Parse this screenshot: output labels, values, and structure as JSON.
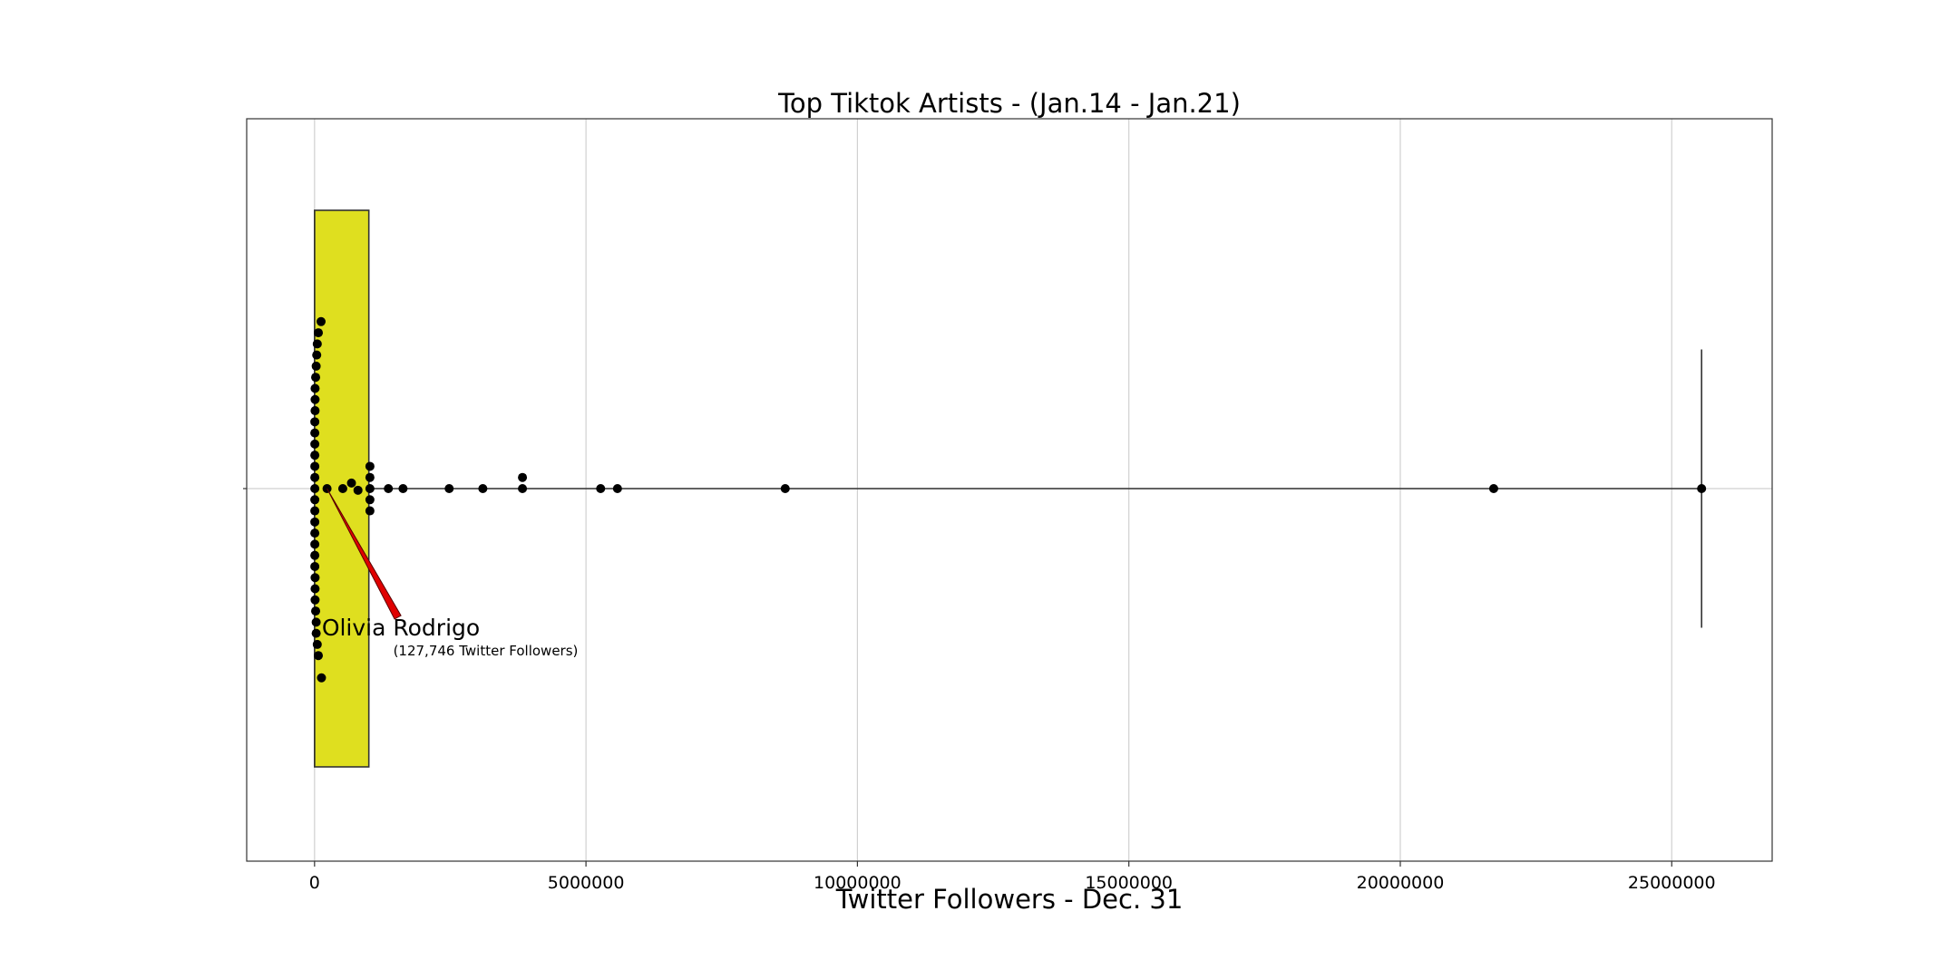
{
  "chart_data": {
    "type": "box",
    "orientation": "horizontal",
    "title": "Top Tiktok Artists - (Jan.14 - Jan.21)",
    "xlabel": "Twitter Followers - Dec. 31",
    "ylabel": "",
    "xlim": [
      -1250000,
      26850000
    ],
    "xticks": [
      0,
      5000000,
      10000000,
      15000000,
      20000000,
      25000000
    ],
    "tick_labels": [
      "0",
      "5000000",
      "10000000",
      "15000000",
      "20000000",
      "25000000"
    ],
    "grid": true,
    "box": {
      "whisker_low": 0,
      "q1": 0,
      "median": 0,
      "q3": 1000000,
      "whisker_high": 25550000,
      "fill": "#dfdf1f"
    },
    "swarm_color": "#000000",
    "points": [
      {
        "x": 120000,
        "yo": -0.3
      },
      {
        "x": 70000,
        "yo": -0.28
      },
      {
        "x": 50000,
        "yo": -0.26
      },
      {
        "x": 40000,
        "yo": -0.24
      },
      {
        "x": 30000,
        "yo": -0.22
      },
      {
        "x": 20000,
        "yo": -0.2
      },
      {
        "x": 10000,
        "yo": -0.18
      },
      {
        "x": 10000,
        "yo": -0.16
      },
      {
        "x": 10000,
        "yo": -0.14
      },
      {
        "x": 5000,
        "yo": -0.12
      },
      {
        "x": 5000,
        "yo": -0.1
      },
      {
        "x": 5000,
        "yo": -0.08
      },
      {
        "x": 5000,
        "yo": -0.06
      },
      {
        "x": 5000,
        "yo": -0.04
      },
      {
        "x": 5000,
        "yo": -0.02
      },
      {
        "x": 5000,
        "yo": 0
      },
      {
        "x": 5000,
        "yo": 0.02
      },
      {
        "x": 5000,
        "yo": 0.04
      },
      {
        "x": 5000,
        "yo": 0.06
      },
      {
        "x": 5000,
        "yo": 0.08
      },
      {
        "x": 5000,
        "yo": 0.1
      },
      {
        "x": 5000,
        "yo": 0.12
      },
      {
        "x": 5000,
        "yo": 0.14
      },
      {
        "x": 10000,
        "yo": 0.16
      },
      {
        "x": 10000,
        "yo": 0.18
      },
      {
        "x": 10000,
        "yo": 0.2
      },
      {
        "x": 20000,
        "yo": 0.22
      },
      {
        "x": 30000,
        "yo": 0.24
      },
      {
        "x": 30000,
        "yo": 0.26
      },
      {
        "x": 50000,
        "yo": 0.28
      },
      {
        "x": 70000,
        "yo": 0.3
      },
      {
        "x": 127746,
        "yo": 0.34
      },
      {
        "x": 230000,
        "yo": 0
      },
      {
        "x": 520000,
        "yo": 0
      },
      {
        "x": 680000,
        "yo": -0.01
      },
      {
        "x": 800000,
        "yo": 0.003
      },
      {
        "x": 1020000,
        "yo": -0.04
      },
      {
        "x": 1020000,
        "yo": -0.02
      },
      {
        "x": 1020000,
        "yo": 0
      },
      {
        "x": 1020000,
        "yo": 0.02
      },
      {
        "x": 1020000,
        "yo": 0.04
      },
      {
        "x": 1360000,
        "yo": 0
      },
      {
        "x": 1630000,
        "yo": 0
      },
      {
        "x": 2480000,
        "yo": 0
      },
      {
        "x": 3100000,
        "yo": 0
      },
      {
        "x": 3830000,
        "yo": -0.02
      },
      {
        "x": 3830000,
        "yo": 0
      },
      {
        "x": 5270000,
        "yo": 0
      },
      {
        "x": 5580000,
        "yo": 0
      },
      {
        "x": 8670000,
        "yo": 0
      },
      {
        "x": 21720000,
        "yo": 0
      },
      {
        "x": 25550000,
        "yo": 0
      }
    ],
    "annotation": {
      "name": "Olivia Rodrigo",
      "detail": "(127,746 Twitter Followers)",
      "point_x": 230000,
      "arrow_color": "#e00000"
    }
  }
}
